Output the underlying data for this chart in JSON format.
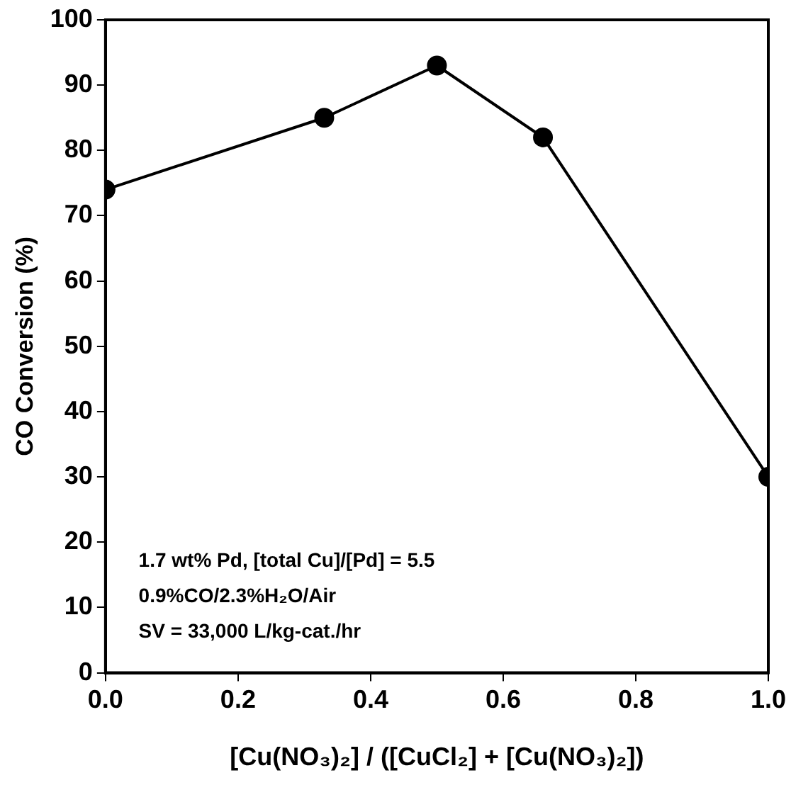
{
  "chart_data": {
    "type": "line",
    "xlabel": "[Cu(NO₃)₂] / ([CuCl₂] + [Cu(NO₃)₂])",
    "ylabel": "CO Conversion (%)",
    "x": [
      0,
      0.33,
      0.5,
      0.66,
      1.0
    ],
    "series": [
      {
        "color": "#000000",
        "values": [
          74,
          85,
          93,
          82,
          30
        ]
      }
    ],
    "xlim": [
      0,
      1
    ],
    "xticks": [
      {
        "value": 0,
        "label": "0.0"
      },
      {
        "value": 0.2,
        "label": "0.2"
      },
      {
        "value": 0.4,
        "label": "0.4"
      },
      {
        "value": 0.6,
        "label": "0.6"
      },
      {
        "value": 0.8,
        "label": "0.8"
      },
      {
        "value": 1,
        "label": "1.0"
      }
    ],
    "ylim": [
      0,
      100
    ],
    "yticks": [
      0,
      10,
      20,
      30,
      40,
      50,
      60,
      70,
      80,
      90,
      100
    ],
    "grid": false,
    "legend": false,
    "marker": "circle",
    "line_style": "solid",
    "annotations": [
      "1.7 wt% Pd, [total Cu]/[Pd] = 5.5",
      "0.9%CO/2.3%H₂O/Air",
      "SV = 33,000 L/kg-cat./hr"
    ]
  }
}
